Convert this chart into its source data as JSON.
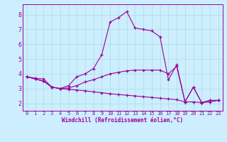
{
  "xlabel": "Windchill (Refroidissement éolien,°C)",
  "bg_color": "#cceeff",
  "line_color": "#990099",
  "grid_color": "#aadddd",
  "xlim": [
    -0.5,
    23.5
  ],
  "ylim": [
    1.5,
    8.7
  ],
  "yticks": [
    2,
    3,
    4,
    5,
    6,
    7,
    8
  ],
  "xticks": [
    0,
    1,
    2,
    3,
    4,
    5,
    6,
    7,
    8,
    9,
    10,
    11,
    12,
    13,
    14,
    15,
    16,
    17,
    18,
    19,
    20,
    21,
    22,
    23
  ],
  "series1_x": [
    0,
    1,
    2,
    3,
    4,
    5,
    6,
    7,
    8,
    9,
    10,
    11,
    12,
    13,
    14,
    15,
    16,
    17,
    18,
    19,
    20,
    21,
    22,
    23
  ],
  "series1_y": [
    3.8,
    3.7,
    3.65,
    3.1,
    3.0,
    3.2,
    3.8,
    4.0,
    4.35,
    5.3,
    7.5,
    7.8,
    8.2,
    7.1,
    7.0,
    6.9,
    6.5,
    3.6,
    4.6,
    2.1,
    3.1,
    2.05,
    2.2,
    2.2
  ],
  "series2_x": [
    0,
    1,
    2,
    3,
    4,
    5,
    6,
    7,
    8,
    9,
    10,
    11,
    12,
    13,
    14,
    15,
    16,
    17,
    18,
    19,
    20,
    21,
    22,
    23
  ],
  "series2_y": [
    3.8,
    3.65,
    3.5,
    3.1,
    3.0,
    3.05,
    3.2,
    3.45,
    3.6,
    3.8,
    4.0,
    4.1,
    4.2,
    4.25,
    4.25,
    4.25,
    4.25,
    4.0,
    4.5,
    2.1,
    3.1,
    2.05,
    2.2,
    2.2
  ],
  "series3_x": [
    0,
    1,
    2,
    3,
    4,
    5,
    6,
    7,
    8,
    9,
    10,
    11,
    12,
    13,
    14,
    15,
    16,
    17,
    18,
    19,
    20,
    21,
    22,
    23
  ],
  "series3_y": [
    3.8,
    3.65,
    3.5,
    3.1,
    3.0,
    2.95,
    2.9,
    2.85,
    2.78,
    2.72,
    2.65,
    2.6,
    2.55,
    2.5,
    2.45,
    2.4,
    2.35,
    2.3,
    2.25,
    2.1,
    2.1,
    2.05,
    2.1,
    2.2
  ]
}
